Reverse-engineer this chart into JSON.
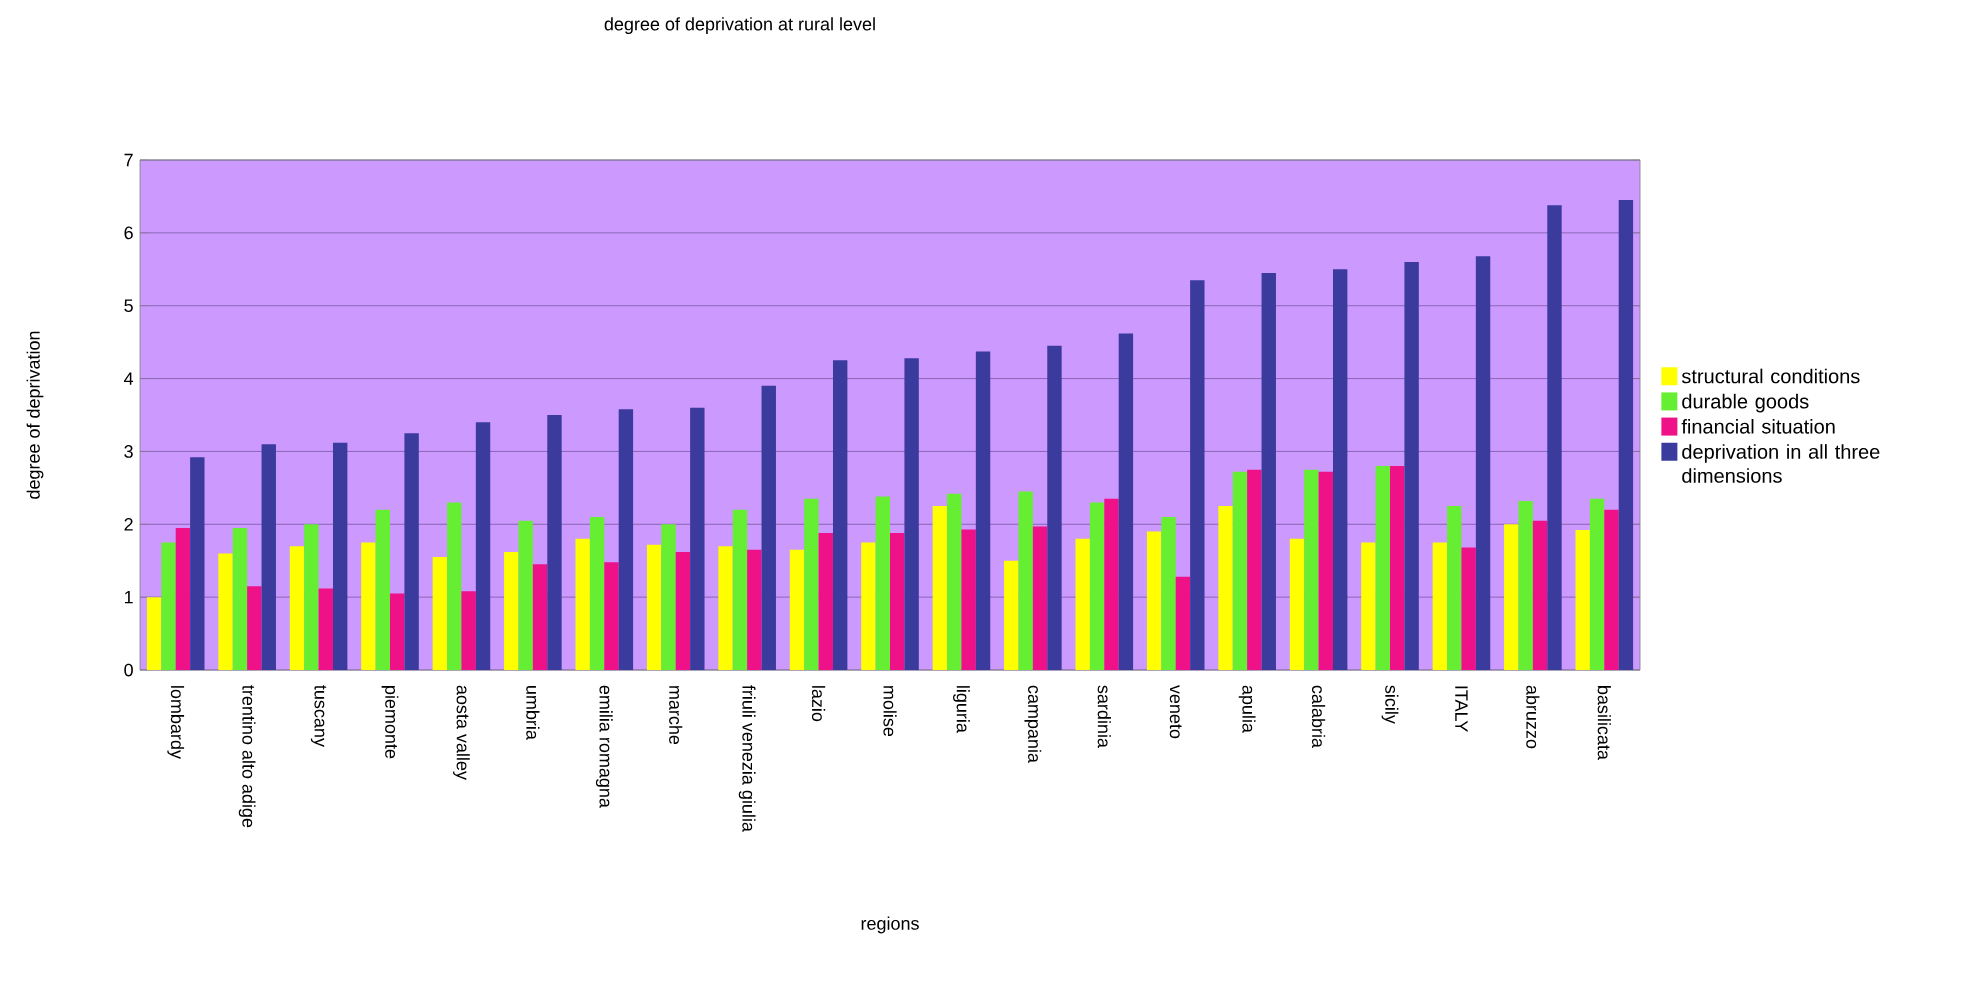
{
  "chart_data": {
    "type": "bar",
    "title": "degree of deprivation at rural level",
    "xlabel": "regions",
    "ylabel": "degree of deprivation",
    "categories": [
      "lombardy",
      "trentino alto adige",
      "tuscany",
      "piemonte",
      "aosta valley",
      "umbria",
      "emilia romagna",
      "marche",
      "friuli venezia giulia",
      "lazio",
      "molise",
      "liguria",
      "campania",
      "sardinia",
      "veneto",
      "apulia",
      "calabria",
      "sicily",
      "ITALY",
      "abruzzo",
      "basilicata"
    ],
    "series": [
      {
        "name": "structural conditions",
        "color": "#ffff00",
        "values": [
          1.0,
          1.6,
          1.7,
          1.75,
          1.55,
          1.62,
          1.8,
          1.72,
          1.7,
          1.65,
          1.75,
          2.25,
          1.5,
          1.8,
          1.9,
          2.25,
          1.8,
          1.75,
          1.75,
          2.0,
          1.92
        ]
      },
      {
        "name": "durable goods",
        "color": "#66ee33",
        "values": [
          1.75,
          1.95,
          2.0,
          2.2,
          2.3,
          2.05,
          2.1,
          2.0,
          2.2,
          2.35,
          2.38,
          2.42,
          2.45,
          2.3,
          2.1,
          2.72,
          2.75,
          2.8,
          2.25,
          2.32,
          2.35
        ]
      },
      {
        "name": "financial situation",
        "color": "#ee1188",
        "values": [
          1.95,
          1.15,
          1.12,
          1.05,
          1.08,
          1.45,
          1.48,
          1.62,
          1.65,
          1.88,
          1.88,
          1.93,
          1.97,
          2.35,
          1.28,
          2.75,
          2.72,
          2.8,
          1.68,
          2.05,
          2.2
        ]
      },
      {
        "name": "deprivation in all three dimensions",
        "color": "#3b3b9e",
        "values": [
          2.92,
          3.1,
          3.12,
          3.25,
          3.4,
          3.5,
          3.58,
          3.6,
          3.9,
          4.25,
          4.28,
          4.37,
          4.45,
          4.62,
          5.35,
          5.45,
          5.5,
          5.6,
          5.68,
          6.38,
          6.45
        ]
      }
    ],
    "ylim": [
      0,
      7
    ],
    "yticks": [
      0,
      1,
      2,
      3,
      4,
      5,
      6,
      7
    ],
    "grid": "y",
    "legend": "right"
  }
}
